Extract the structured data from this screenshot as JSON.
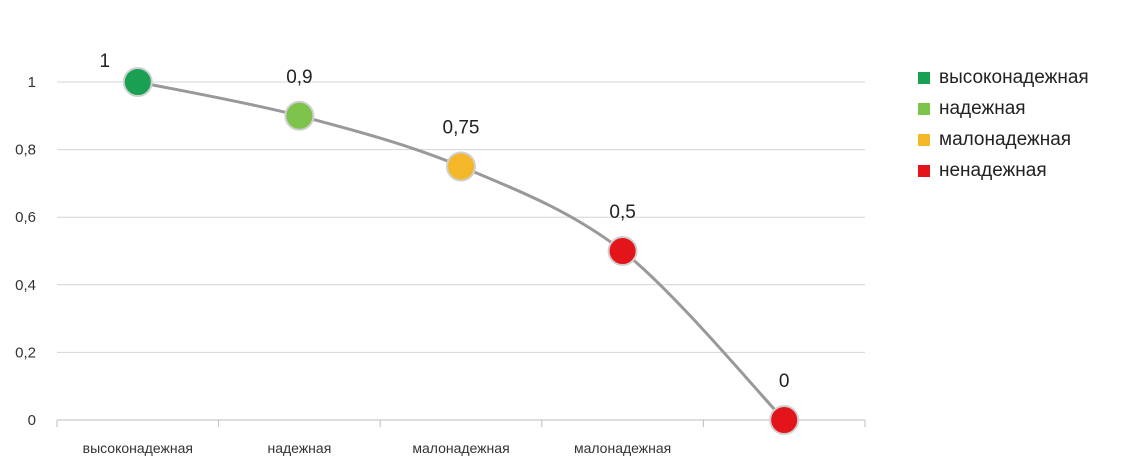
{
  "chart_data": {
    "type": "line",
    "categories": [
      "высоконадежная",
      "надежная",
      "малонадежная",
      "малонадежная",
      ""
    ],
    "values": [
      1,
      0.9,
      0.75,
      0.5,
      0
    ],
    "data_labels": [
      "1",
      "0,9",
      "0,75",
      "0,5",
      "0"
    ],
    "point_colors": [
      "#1aa052",
      "#7dc24a",
      "#f3b729",
      "#e3151b",
      "#e3151b"
    ],
    "line_color": "#999999",
    "ylim": [
      0,
      1
    ],
    "yticks": [
      0,
      0.2,
      0.4,
      0.6,
      0.8,
      1
    ],
    "ytick_labels": [
      "0",
      "0,2",
      "0,4",
      "0,6",
      "0,8",
      "1"
    ],
    "grid": true,
    "legend_position": "right",
    "legend": [
      {
        "label": "высоконадежная",
        "color": "#1aa052"
      },
      {
        "label": "надежная",
        "color": "#7dc24a"
      },
      {
        "label": "малонадежная",
        "color": "#f3b729"
      },
      {
        "label": "ненадежная",
        "color": "#e3151b"
      }
    ]
  }
}
